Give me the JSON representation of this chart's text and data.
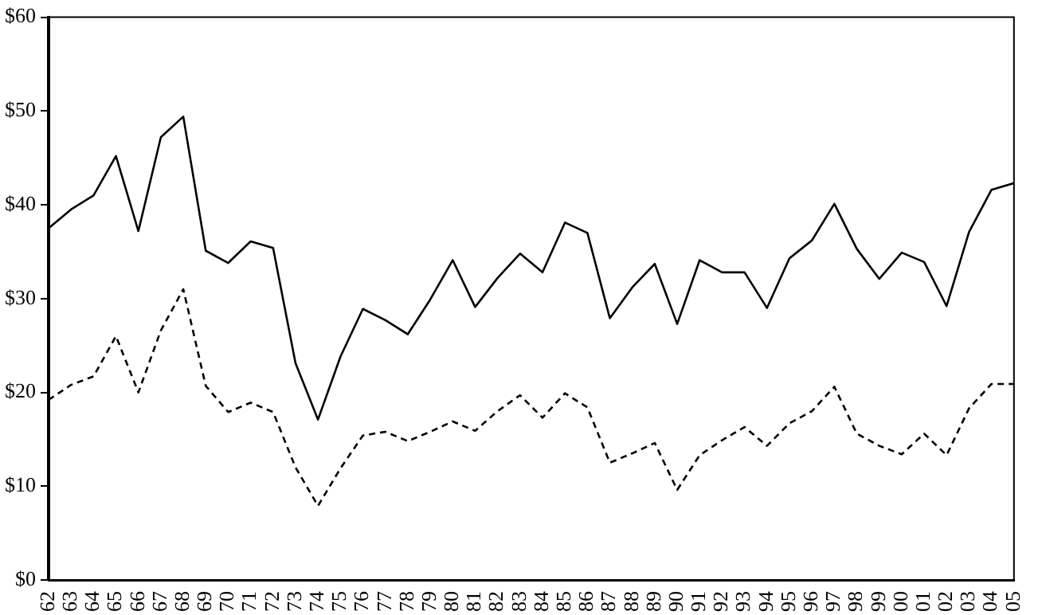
{
  "chart_data": {
    "type": "line",
    "categories": [
      "62",
      "63",
      "64",
      "65",
      "66",
      "67",
      "68",
      "69",
      "70",
      "71",
      "72",
      "73",
      "74",
      "75",
      "76",
      "77",
      "78",
      "79",
      "80",
      "81",
      "82",
      "83",
      "84",
      "85",
      "86",
      "87",
      "88",
      "89",
      "90",
      "91",
      "92",
      "93",
      "94",
      "95",
      "96",
      "97",
      "98",
      "99",
      "00",
      "01",
      "02",
      "03",
      "04",
      "05"
    ],
    "series": [
      {
        "color": "#000000",
        "line_style": "solid",
        "values": [
          37.5,
          39.5,
          41,
          45.2,
          37.2,
          47.2,
          49.4,
          35.1,
          33.8,
          36.1,
          35.4,
          23.1,
          17.1,
          23.8,
          28.9,
          27.7,
          26.2,
          29.9,
          34.1,
          29.1,
          32.2,
          34.8,
          32.8,
          38.1,
          37,
          27.9,
          31.2,
          33.7,
          27.3,
          34.1,
          32.8,
          32.8,
          29,
          34.3,
          36.2,
          40.1,
          35.3,
          32.1,
          34.9,
          33.9,
          29.2,
          37.1,
          41.6,
          42.3
        ]
      },
      {
        "color": "#000000",
        "line_style": "dashed",
        "values": [
          19.2,
          20.8,
          21.7,
          26,
          20,
          26.6,
          31,
          20.7,
          17.9,
          18.9,
          17.9,
          12,
          7.9,
          11.9,
          15.4,
          15.8,
          14.8,
          15.8,
          16.9,
          15.9,
          18,
          19.7,
          17.3,
          19.9,
          18.4,
          12.5,
          13.5,
          14.6,
          9.6,
          13.3,
          14.9,
          16.3,
          14.3,
          16.7,
          18,
          20.6,
          15.6,
          14.3,
          13.4,
          15.6,
          13.3,
          18.3,
          20.9,
          20.9
        ]
      }
    ],
    "ylim": [
      0,
      60
    ],
    "yticks": [
      {
        "value": 0,
        "label": "$0"
      },
      {
        "value": 10,
        "label": "$10"
      },
      {
        "value": 20,
        "label": "$20"
      },
      {
        "value": 30,
        "label": "$30"
      },
      {
        "value": 40,
        "label": "$40"
      },
      {
        "value": 50,
        "label": "$50"
      },
      {
        "value": 60,
        "label": "$60"
      }
    ],
    "grid": false,
    "legend": false,
    "marker": "none"
  }
}
